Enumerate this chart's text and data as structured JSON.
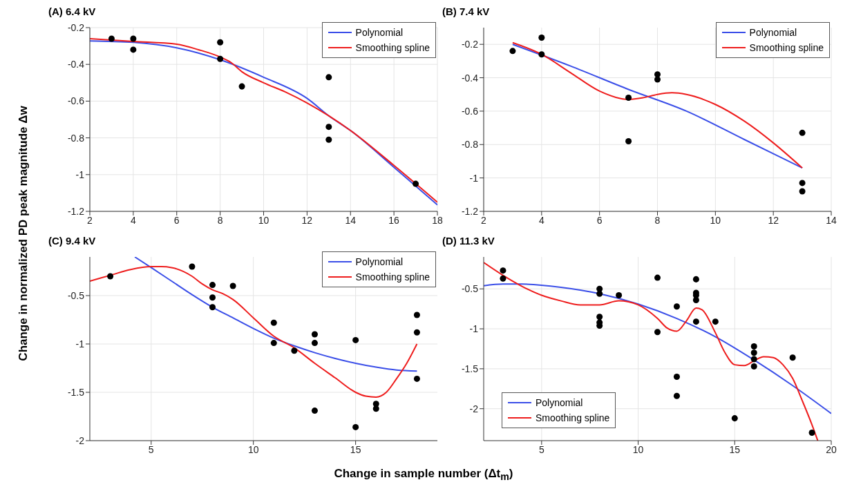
{
  "chart_data": [
    {
      "type": "scatter",
      "title": "(A) 6.4 kV",
      "ylabel": "Change in normalized PD peak magnitude Δw",
      "xlim": [
        2,
        18
      ],
      "xticks": [
        2,
        4,
        6,
        8,
        10,
        12,
        14,
        16,
        18
      ],
      "ylim": [
        -1.2,
        -0.2
      ],
      "yticks": [
        -1.2,
        -1,
        -0.8,
        -0.6,
        -0.4,
        -0.2
      ],
      "grid": true,
      "legend": "top right",
      "series": [
        {
          "name": "Polynomial",
          "type": "line",
          "color": "#3a4ee8",
          "marker": "none",
          "line_style": "solid",
          "x": [
            2,
            4,
            6,
            8,
            10,
            12,
            13,
            14,
            16,
            18
          ],
          "values": [
            -0.272,
            -0.28,
            -0.31,
            -0.375,
            -0.47,
            -0.585,
            -0.68,
            -0.76,
            -0.96,
            -1.165
          ]
        },
        {
          "name": "Smoothing spline",
          "type": "line",
          "color": "#ee1c1c",
          "marker": "none",
          "line_style": "solid",
          "x": [
            2,
            4,
            6,
            7,
            8,
            8.5,
            9,
            10,
            11,
            12,
            13,
            14,
            16,
            18
          ],
          "values": [
            -0.26,
            -0.275,
            -0.29,
            -0.32,
            -0.36,
            -0.39,
            -0.44,
            -0.5,
            -0.55,
            -0.61,
            -0.68,
            -0.76,
            -0.95,
            -1.15
          ]
        },
        {
          "type": "scatter",
          "color": "#000000",
          "marker": "circle",
          "x": [
            3,
            4,
            4,
            8,
            8,
            9,
            13,
            13,
            13,
            17
          ],
          "values": [
            -0.26,
            -0.26,
            -0.32,
            -0.28,
            -0.37,
            -0.52,
            -0.47,
            -0.74,
            -0.81,
            -1.05
          ]
        }
      ]
    },
    {
      "type": "scatter",
      "title": "(B) 7.4 kV",
      "xlim": [
        2,
        14
      ],
      "xticks": [
        2,
        4,
        6,
        8,
        10,
        12,
        14
      ],
      "ylim": [
        -1.2,
        -0.1
      ],
      "yticks": [
        -1.2,
        -1,
        -0.8,
        -0.6,
        -0.4,
        -0.2
      ],
      "grid": true,
      "legend": "top right",
      "series": [
        {
          "name": "Polynomial",
          "type": "line",
          "color": "#3a4ee8",
          "marker": "none",
          "line_style": "solid",
          "x": [
            3,
            5,
            7,
            9,
            11,
            13
          ],
          "values": [
            -0.2,
            -0.33,
            -0.47,
            -0.6,
            -0.77,
            -0.94
          ]
        },
        {
          "name": "Smoothing spline",
          "type": "line",
          "color": "#ee1c1c",
          "marker": "none",
          "line_style": "solid",
          "x": [
            3,
            4,
            5,
            6,
            7,
            7.5,
            8,
            8.5,
            9,
            10,
            11,
            12,
            13
          ],
          "values": [
            -0.19,
            -0.26,
            -0.37,
            -0.48,
            -0.53,
            -0.52,
            -0.5,
            -0.49,
            -0.5,
            -0.56,
            -0.66,
            -0.79,
            -0.94
          ]
        },
        {
          "type": "scatter",
          "color": "#000000",
          "marker": "circle",
          "x": [
            3,
            4,
            4,
            7,
            7,
            8,
            8,
            13,
            13,
            13
          ],
          "values": [
            -0.24,
            -0.16,
            -0.26,
            -0.52,
            -0.78,
            -0.38,
            -0.41,
            -0.73,
            -1.03,
            -1.08
          ]
        }
      ]
    },
    {
      "type": "scatter",
      "title": "(C) 9.4 kV",
      "xlim": [
        2,
        19
      ],
      "xticks": [
        5,
        10,
        15
      ],
      "ylim": [
        -2,
        -0.1
      ],
      "yticks": [
        -2,
        -1.5,
        -1,
        -0.5
      ],
      "grid": true,
      "legend": "top right",
      "series": [
        {
          "name": "Polynomial",
          "type": "line",
          "color": "#3a4ee8",
          "marker": "none",
          "line_style": "solid",
          "x": [
            4.2,
            5,
            6,
            7,
            8,
            9,
            10,
            11,
            12,
            13,
            14,
            15,
            16,
            17,
            18
          ],
          "values": [
            -0.1,
            -0.21,
            -0.35,
            -0.49,
            -0.62,
            -0.73,
            -0.84,
            -0.94,
            -1.02,
            -1.09,
            -1.15,
            -1.2,
            -1.24,
            -1.27,
            -1.28
          ]
        },
        {
          "name": "Smoothing spline",
          "type": "line",
          "color": "#ee1c1c",
          "marker": "none",
          "line_style": "solid",
          "x": [
            2,
            3,
            4,
            5,
            5.5,
            6,
            7,
            7.5,
            8,
            8.5,
            9,
            10,
            11,
            12,
            13,
            14,
            15,
            15.5,
            16,
            16.5,
            17,
            17.5,
            18
          ],
          "values": [
            -0.35,
            -0.29,
            -0.23,
            -0.2,
            -0.2,
            -0.21,
            -0.3,
            -0.38,
            -0.44,
            -0.48,
            -0.54,
            -0.73,
            -0.92,
            -1.04,
            -1.2,
            -1.35,
            -1.5,
            -1.54,
            -1.55,
            -1.5,
            -1.36,
            -1.2,
            -1.0
          ]
        },
        {
          "type": "scatter",
          "color": "#000000",
          "marker": "circle",
          "x": [
            3,
            7,
            8,
            8,
            8,
            9,
            11,
            11,
            12,
            13,
            13,
            13,
            15,
            15,
            16,
            16,
            18,
            18,
            18
          ],
          "values": [
            -0.3,
            -0.2,
            -0.39,
            -0.52,
            -0.62,
            -0.4,
            -0.78,
            -0.99,
            -1.07,
            -0.9,
            -0.99,
            -1.69,
            -0.96,
            -1.86,
            -1.62,
            -1.67,
            -0.7,
            -0.88,
            -1.36
          ]
        }
      ]
    },
    {
      "type": "scatter",
      "title": "(D) 11.3 kV",
      "xlabel": "Change in sample number (Δt$_{m}$)",
      "xlim": [
        2,
        20
      ],
      "xticks": [
        5,
        10,
        15,
        20
      ],
      "ylim": [
        -2.4,
        -0.1
      ],
      "yticks": [
        -2,
        -1.5,
        -1,
        -0.5
      ],
      "grid": true,
      "legend": "bottom left",
      "series": [
        {
          "name": "Polynomial",
          "type": "line",
          "color": "#3a4ee8",
          "marker": "none",
          "line_style": "solid",
          "x": [
            2,
            3,
            4,
            6,
            8,
            10,
            12,
            14,
            16,
            18,
            20
          ],
          "values": [
            -0.46,
            -0.44,
            -0.44,
            -0.48,
            -0.56,
            -0.69,
            -0.87,
            -1.1,
            -1.39,
            -1.71,
            -2.06
          ]
        },
        {
          "name": "Smoothing spline",
          "type": "line",
          "color": "#ee1c1c",
          "marker": "none",
          "line_style": "solid",
          "x": [
            2,
            3,
            4,
            5,
            6,
            7,
            8,
            9,
            10,
            11,
            11.5,
            12,
            12.5,
            13,
            13.3,
            14,
            14.5,
            15,
            15.5,
            16,
            16.5,
            17,
            17.5,
            18,
            18.5,
            19,
            19.3
          ],
          "values": [
            -0.17,
            -0.33,
            -0.47,
            -0.58,
            -0.65,
            -0.7,
            -0.7,
            -0.65,
            -0.7,
            -0.87,
            -0.99,
            -1.03,
            -0.9,
            -0.74,
            -0.76,
            -1.05,
            -1.3,
            -1.45,
            -1.46,
            -1.4,
            -1.35,
            -1.36,
            -1.45,
            -1.62,
            -1.9,
            -2.2,
            -2.4
          ]
        },
        {
          "type": "scatter",
          "color": "#000000",
          "marker": "circle",
          "x": [
            3,
            3,
            8,
            8,
            8,
            8,
            8,
            9,
            11,
            11,
            12,
            12,
            12,
            13,
            13,
            13,
            13,
            13,
            14,
            15,
            16,
            16,
            16,
            16,
            18,
            19
          ],
          "values": [
            -0.27,
            -0.37,
            -0.5,
            -0.56,
            -0.85,
            -0.92,
            -0.96,
            -0.58,
            -0.36,
            -1.04,
            -0.72,
            -1.6,
            -1.84,
            -0.38,
            -0.55,
            -0.58,
            -0.64,
            -0.91,
            -0.91,
            -2.12,
            -1.22,
            -1.3,
            -1.38,
            -1.47,
            -1.36,
            -2.3
          ]
        }
      ]
    }
  ]
}
